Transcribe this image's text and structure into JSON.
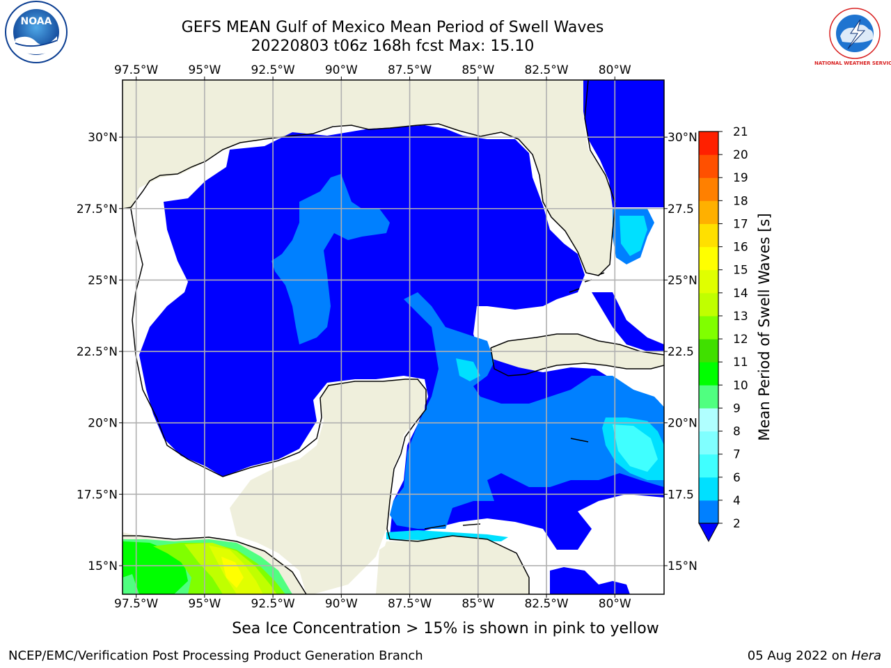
{
  "header": {
    "title": "GEFS MEAN Gulf of Mexico Mean Period of Swell Waves",
    "subtitle": "20220803 t06z 168h fcst   Max: 15.10"
  },
  "logos": {
    "left": "NOAA",
    "right": "NATIONAL WEATHER SERVICE"
  },
  "map": {
    "projection": "plate-carree",
    "lon_range": [
      -98.0,
      -78.2
    ],
    "lat_range": [
      14.0,
      32.0
    ],
    "lon_ticks": [
      -97.5,
      -95,
      -92.5,
      -90,
      -87.5,
      -85,
      -82.5,
      -80
    ],
    "lon_tick_labels": [
      "97.5°W",
      "95°W",
      "92.5°W",
      "90°W",
      "87.5°W",
      "85°W",
      "82.5°W",
      "80°W"
    ],
    "lat_ticks": [
      15,
      17.5,
      20,
      22.5,
      25,
      27.5,
      30
    ],
    "lat_tick_labels_left": [
      "15°N",
      "17.5°N",
      "20°N",
      "22.5°N",
      "25°N",
      "27.5°N",
      "30°N"
    ],
    "lat_tick_labels_right": [
      "15°N",
      "17.5",
      "20°N",
      "22.5",
      "25°N",
      "27.5",
      "30°N"
    ],
    "grid": true,
    "colors": {
      "land": "#efefdc",
      "ocean_no_data": "#ffffff",
      "coastline": "#000000",
      "gridline": "#b0b0b0"
    }
  },
  "colorbar": {
    "label": "Mean Period of Swell Waves [s]",
    "tick_labels": [
      "2",
      "4",
      "6",
      "7",
      "8",
      "9",
      "10",
      "11",
      "12",
      "13",
      "14",
      "15",
      "16",
      "17",
      "18",
      "19",
      "20",
      "21"
    ],
    "bounds": [
      2,
      4,
      6,
      7,
      8,
      9,
      10,
      11,
      12,
      13,
      14,
      15,
      16,
      17,
      18,
      19,
      20,
      21
    ],
    "colors": [
      "#0080ff",
      "#00e0ff",
      "#40ffff",
      "#80ffff",
      "#b0ffff",
      "#50ff80",
      "#00ff00",
      "#40e000",
      "#80ff00",
      "#c0ff00",
      "#e0ff00",
      "#ffff00",
      "#ffe000",
      "#ffb000",
      "#ff8000",
      "#ff5000",
      "#ff2000"
    ],
    "extend_color": "#0000ff",
    "extend": "min"
  },
  "chart_data": {
    "type": "heatmap",
    "variable": "Mean Period of Swell Waves",
    "units": "s",
    "max": 15.1,
    "regions": [
      {
        "area": "Northern and western Gulf of Mexico",
        "range_s": [
          0,
          2
        ]
      },
      {
        "area": "Central Gulf of Mexico",
        "range_s": [
          2,
          4
        ]
      },
      {
        "area": "Yucatan Channel and western Caribbean",
        "range_s": [
          2,
          4
        ]
      },
      {
        "area": "Caribbean south of Cuba",
        "range_s": [
          4,
          8
        ]
      },
      {
        "area": "Atlantic east of Florida",
        "range_s": [
          2,
          6
        ]
      },
      {
        "area": "Eastern Pacific off southern Mexico",
        "range_s": [
          9,
          15.1
        ]
      }
    ]
  },
  "caption": "Sea Ice Concentration > 15% is shown in pink to yellow",
  "footer": {
    "left": "NCEP/EMC/Verification Post Processing Product Generation Branch",
    "right_date": "05 Aug 2022 on ",
    "right_host": "Hera"
  }
}
